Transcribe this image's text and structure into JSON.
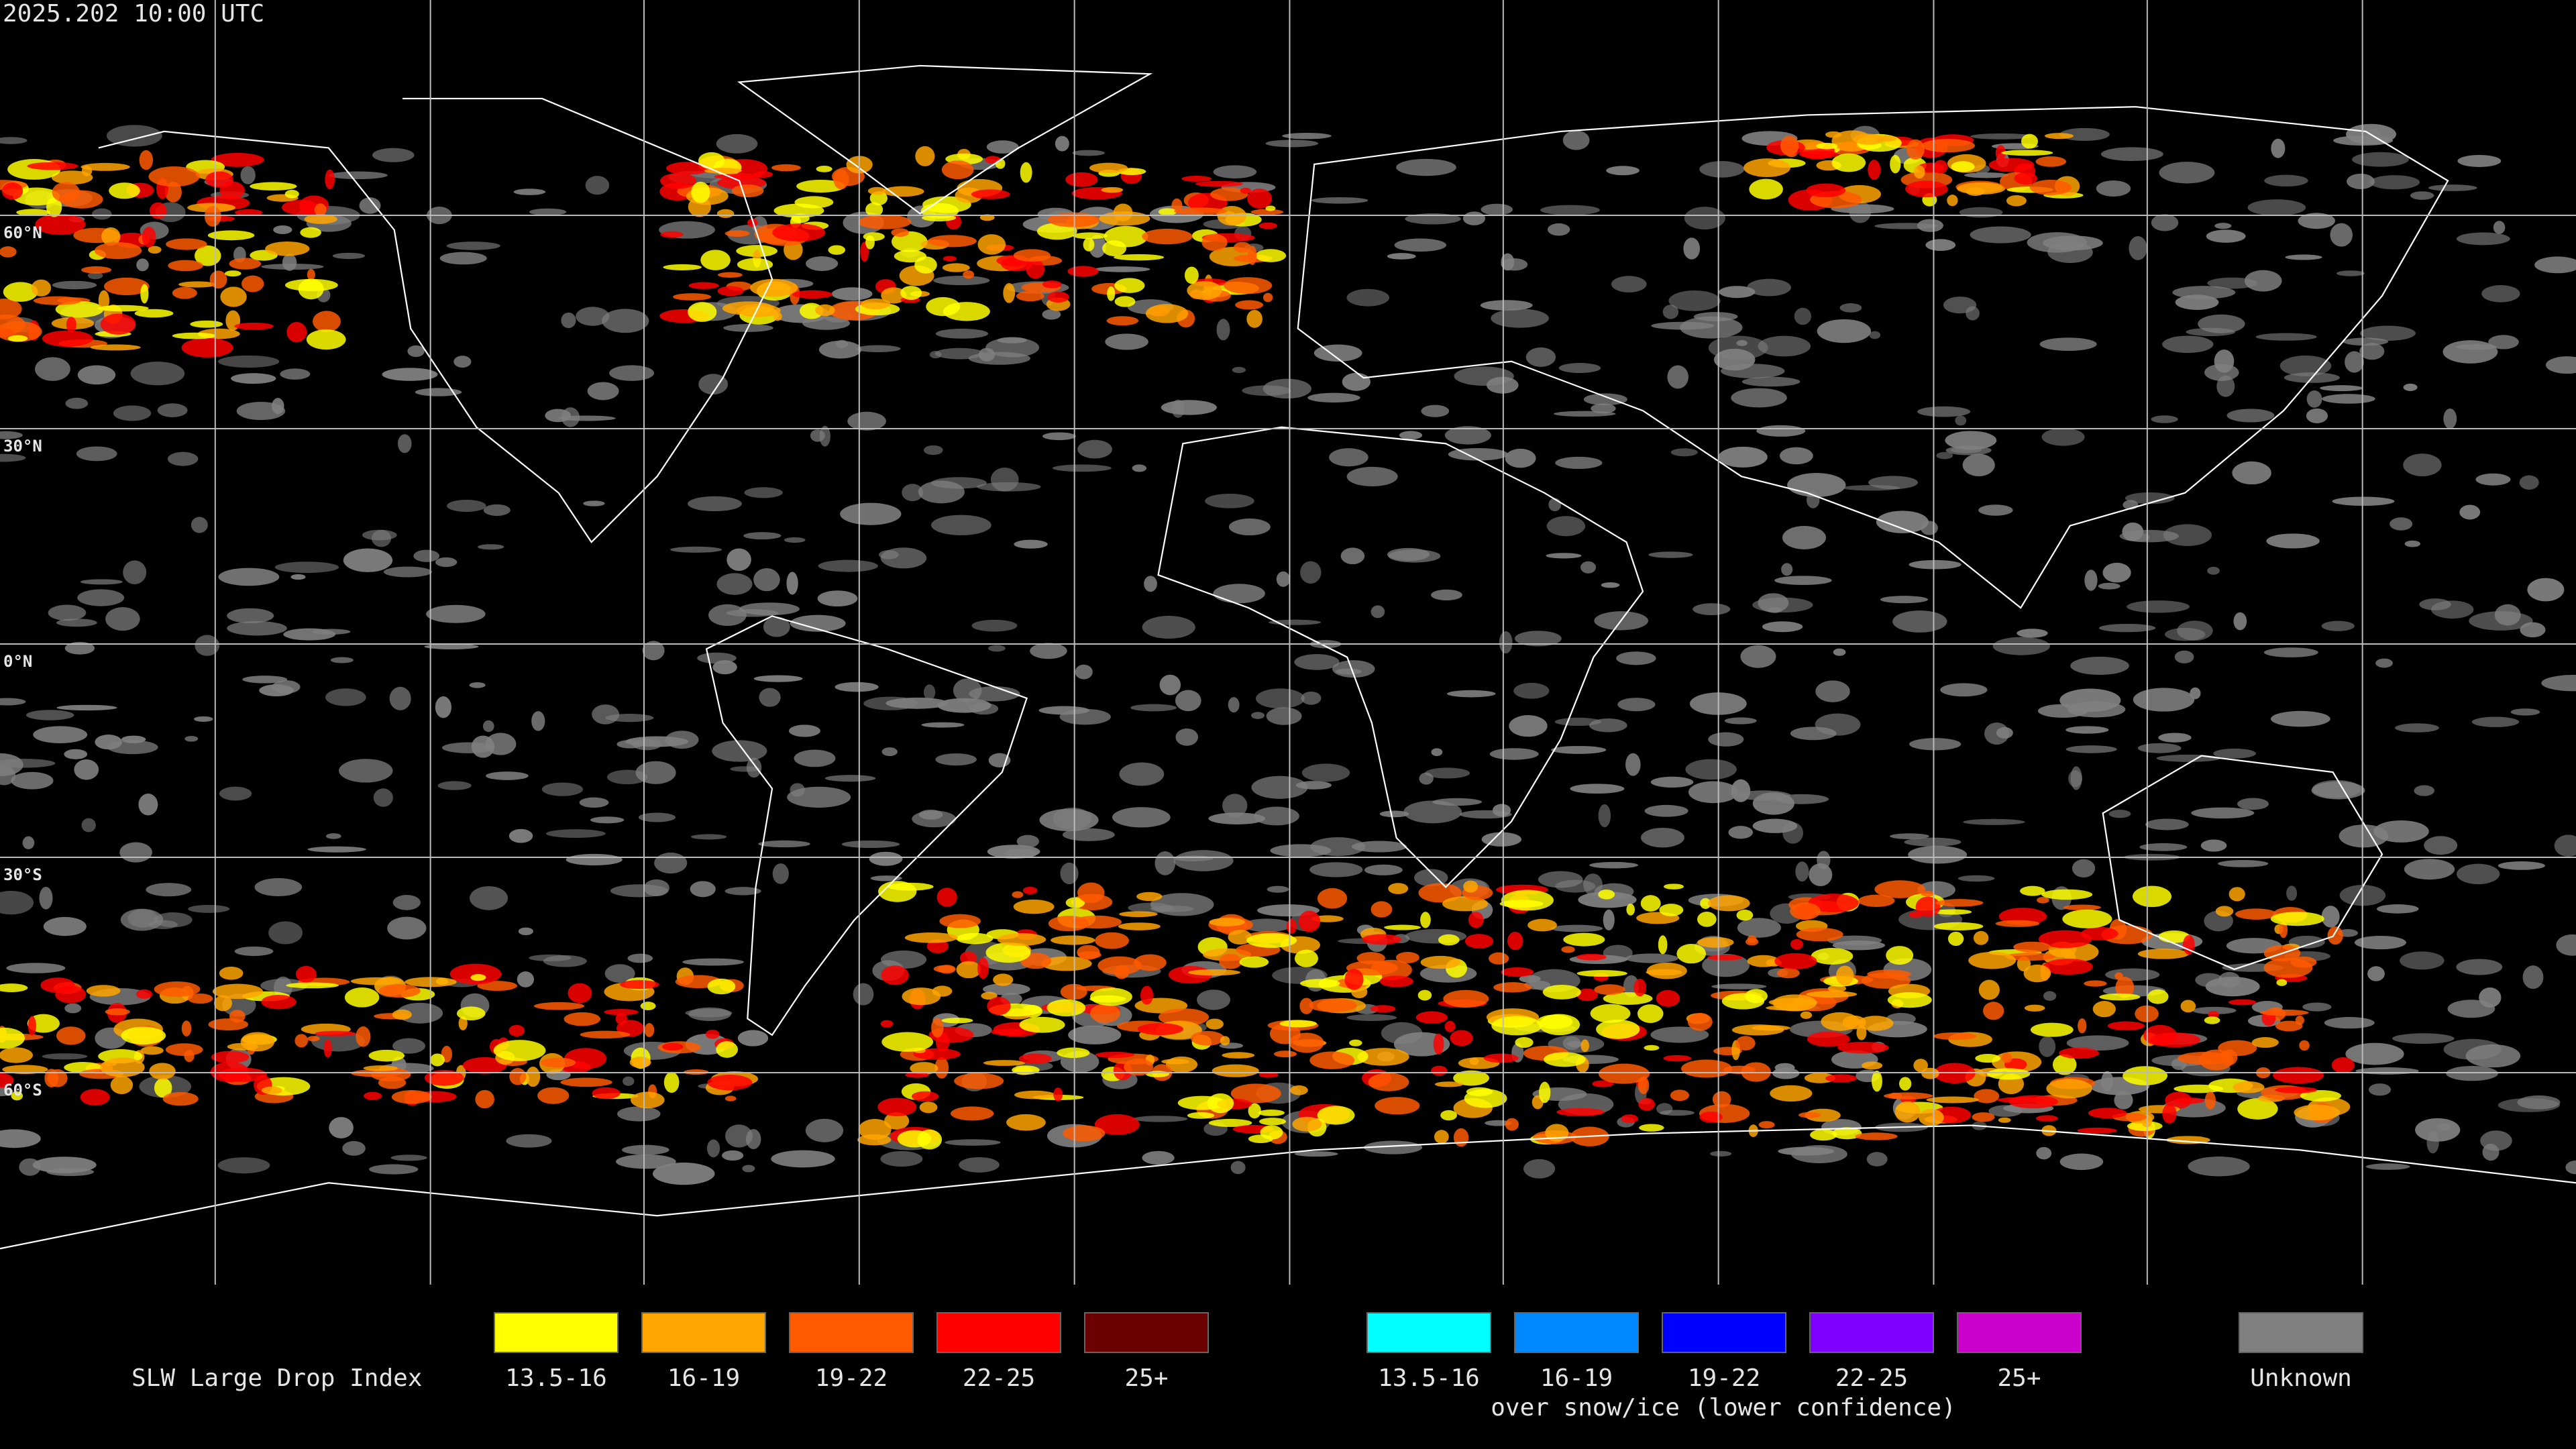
{
  "header": {
    "title": "2025.202 10:00 UTC"
  },
  "map": {
    "lat_labels": [
      "60°N",
      "30°N",
      "0°N",
      "30°S",
      "60°S"
    ]
  },
  "legend": {
    "title": "SLW Large Drop Index",
    "groups": [
      {
        "items": [
          {
            "label": "13.5-16",
            "color": "#ffff00"
          },
          {
            "label": "16-19",
            "color": "#ffa500"
          },
          {
            "label": "19-22",
            "color": "#ff5a00"
          },
          {
            "label": "22-25",
            "color": "#ff0000"
          },
          {
            "label": "25+",
            "color": "#6b0000"
          }
        ]
      },
      {
        "items": [
          {
            "label": "13.5-16",
            "color": "#00ffff"
          },
          {
            "label": "16-19",
            "color": "#0088ff"
          },
          {
            "label": "19-22",
            "color": "#0000ff"
          },
          {
            "label": "22-25",
            "color": "#7f00ff"
          },
          {
            "label": "25+",
            "color": "#cc00cc"
          }
        ],
        "caption": "over snow/ice (lower confidence)"
      },
      {
        "items": [
          {
            "label": "Unknown",
            "color": "#808080"
          }
        ]
      }
    ]
  }
}
